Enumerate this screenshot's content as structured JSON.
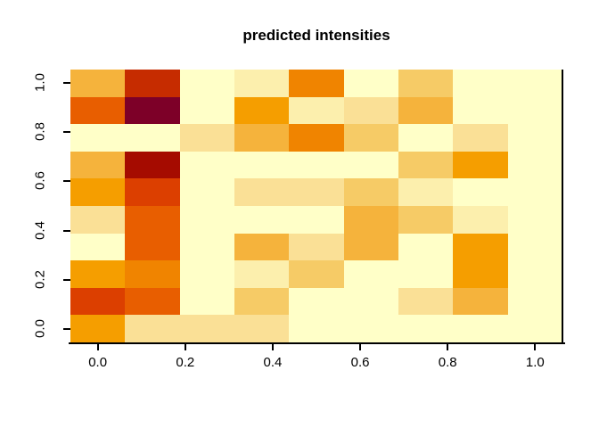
{
  "title": "predicted intensities",
  "chart_data": {
    "type": "heatmap",
    "title": "predicted intensities",
    "xlabel": "",
    "ylabel": "",
    "xlim": [
      -0.0625,
      1.0625
    ],
    "ylim": [
      -0.0556,
      1.0556
    ],
    "grid": false,
    "legend": "none",
    "x_tick_labels": [
      "0.0",
      "0.2",
      "0.4",
      "0.6",
      "0.8",
      "1.0"
    ],
    "x_tick_values": [
      0.0,
      0.2,
      0.4,
      0.6,
      0.8,
      1.0
    ],
    "y_tick_labels": [
      "0.0",
      "0.2",
      "0.4",
      "0.6",
      "0.8",
      "1.0"
    ],
    "y_tick_values": [
      0.0,
      0.2,
      0.4,
      0.6,
      0.8,
      1.0
    ],
    "x_cell_centers": [
      0.0,
      0.125,
      0.25,
      0.375,
      0.5,
      0.625,
      0.75,
      0.875,
      1.0
    ],
    "y_cell_centers": [
      0.0,
      0.111,
      0.222,
      0.333,
      0.444,
      0.556,
      0.667,
      0.778,
      0.889,
      1.0
    ],
    "palette_light_to_dark": [
      "#FFFFC8",
      "#FCEFAD",
      "#FAE096",
      "#F6CB66",
      "#F5B33C",
      "#F59E00",
      "#F08400",
      "#E85E00",
      "#DC3F00",
      "#C62C00",
      "#A50B00",
      "#7D0028"
    ],
    "rows_order": "top_to_bottom",
    "intensity_levels": [
      [
        4,
        9,
        0,
        1,
        6,
        0,
        3,
        0,
        0
      ],
      [
        7,
        11,
        0,
        5,
        1,
        2,
        4,
        0,
        0
      ],
      [
        0,
        0,
        2,
        4,
        6,
        3,
        0,
        2,
        0
      ],
      [
        4,
        10,
        0,
        0,
        0,
        0,
        3,
        5,
        0
      ],
      [
        5,
        8,
        0,
        2,
        2,
        3,
        1,
        0,
        0
      ],
      [
        2,
        7,
        0,
        0,
        0,
        4,
        3,
        1,
        0
      ],
      [
        0,
        7,
        0,
        4,
        2,
        4,
        0,
        5,
        0
      ],
      [
        5,
        6,
        0,
        1,
        3,
        0,
        0,
        5,
        0
      ],
      [
        8,
        7,
        0,
        3,
        0,
        0,
        2,
        4,
        0
      ],
      [
        5,
        2,
        2,
        2,
        0,
        0,
        0,
        0,
        0
      ]
    ],
    "axis_color": "#000000",
    "background_color": "#FFFFFF"
  }
}
